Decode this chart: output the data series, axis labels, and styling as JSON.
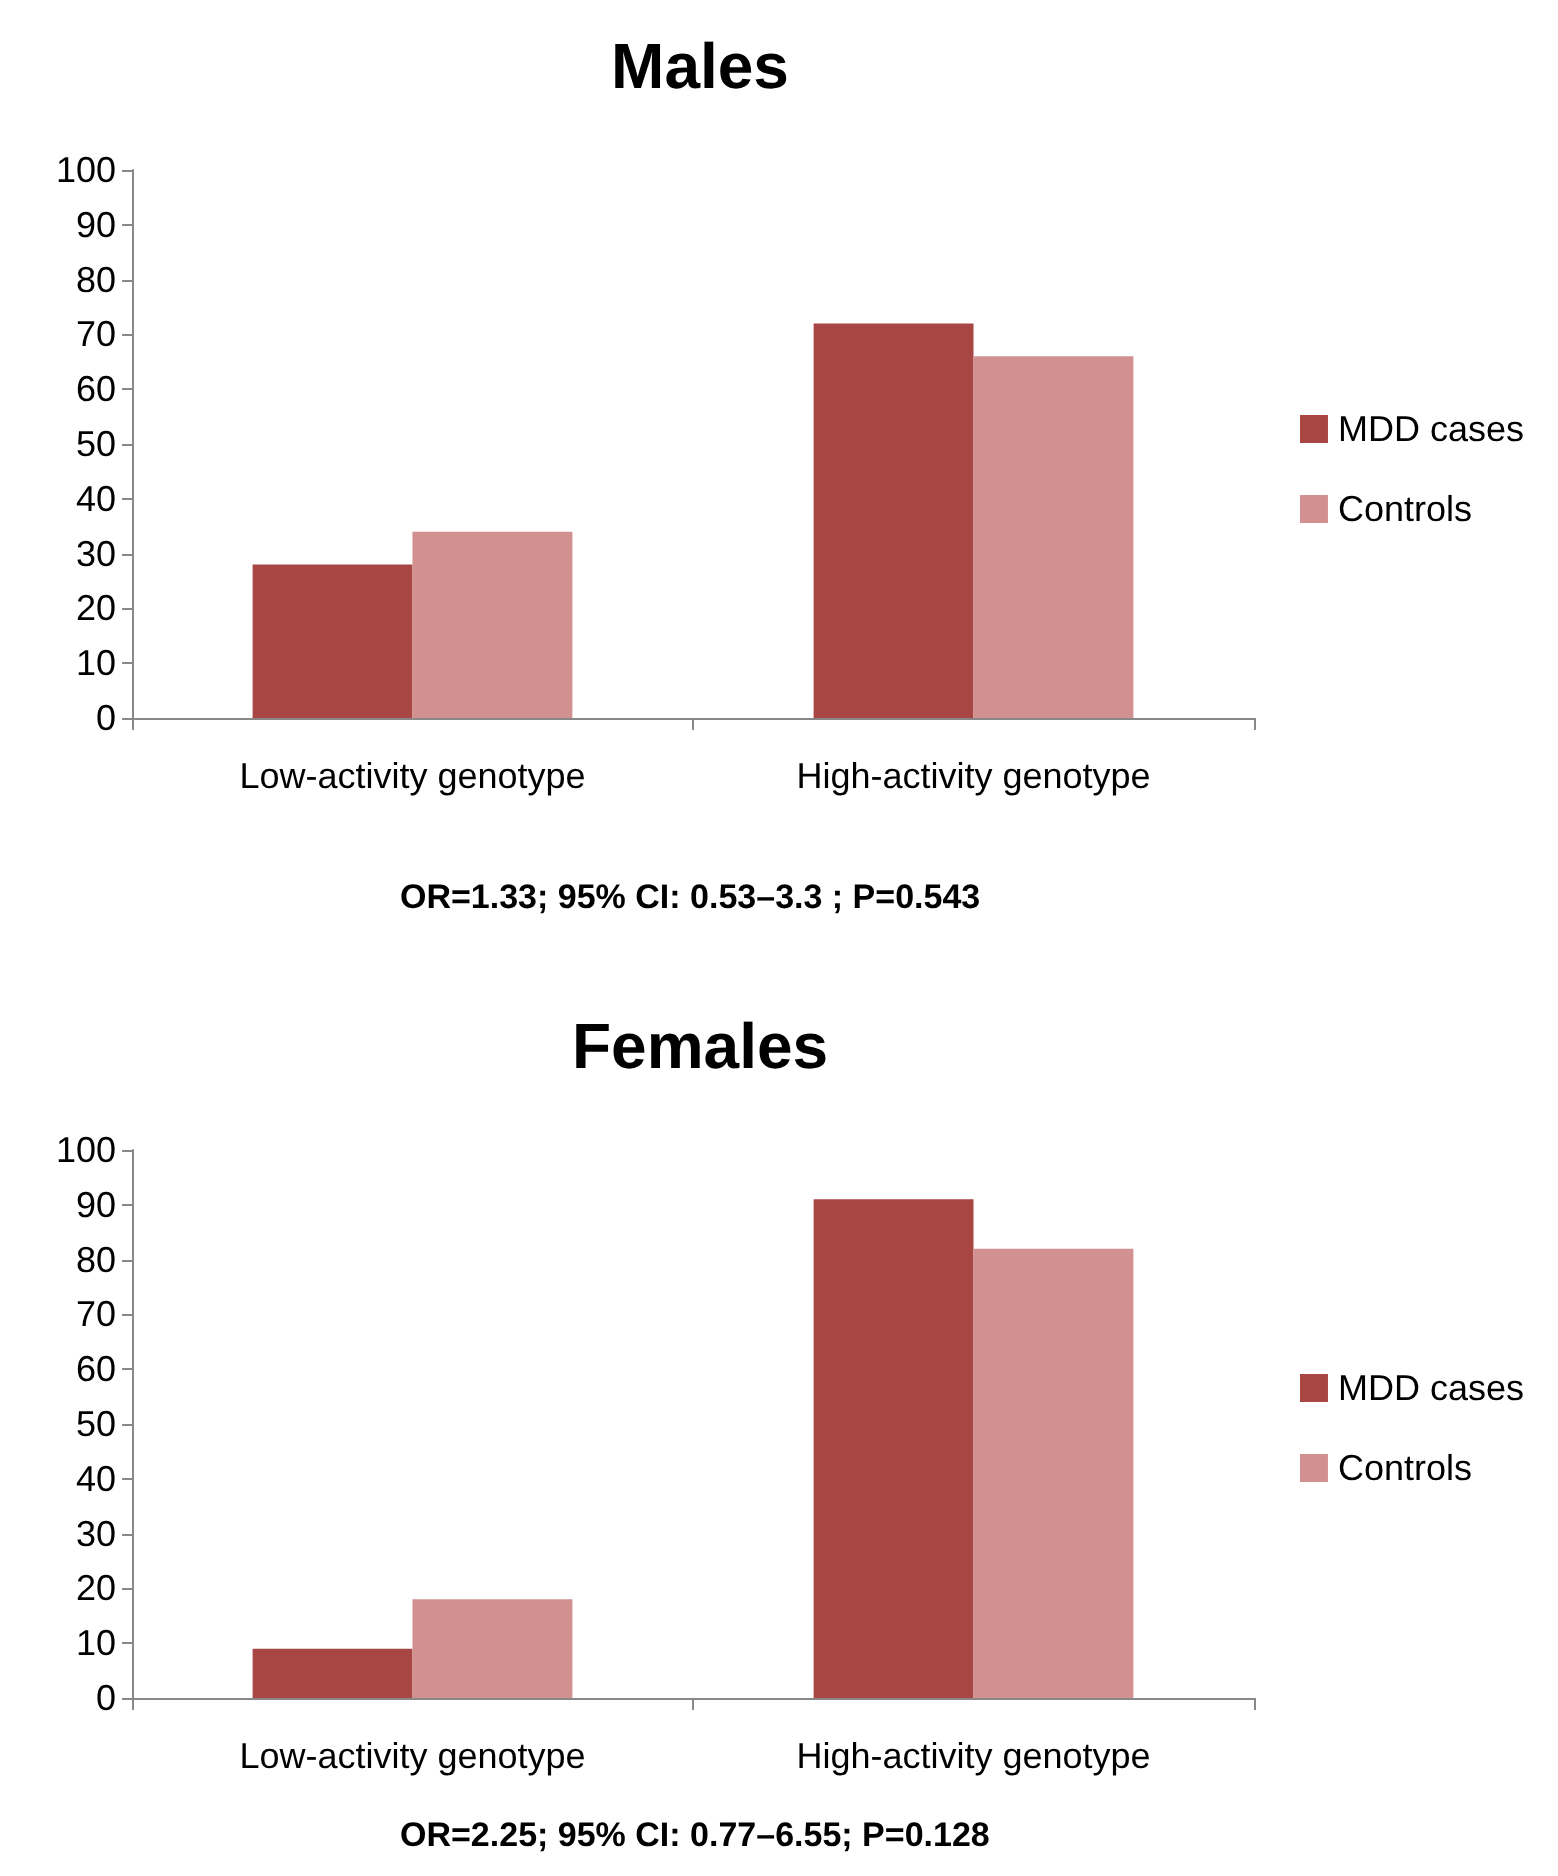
{
  "chart_data": [
    {
      "type": "bar",
      "title": "Males",
      "categories": [
        "Low-activity genotype",
        "High-activity genotype"
      ],
      "series": [
        {
          "name": "MDD cases",
          "color": "#a84644",
          "values": [
            28,
            72
          ]
        },
        {
          "name": "Controls",
          "color": "#d29190",
          "values": [
            34,
            66
          ]
        }
      ],
      "ylim": [
        0,
        100
      ],
      "yticks": [
        0,
        10,
        20,
        30,
        40,
        50,
        60,
        70,
        80,
        90,
        100
      ],
      "grid": false,
      "legend": "right",
      "annotations": [
        "OR=1.33; 95% CI: 0.53–3.3 ; P=0.543"
      ]
    },
    {
      "type": "bar",
      "title": "Females",
      "categories": [
        "Low-activity genotype",
        "High-activity genotype"
      ],
      "series": [
        {
          "name": "MDD cases",
          "color": "#a84644",
          "values": [
            9,
            91
          ]
        },
        {
          "name": "Controls",
          "color": "#d29190",
          "values": [
            18,
            82
          ]
        }
      ],
      "ylim": [
        0,
        100
      ],
      "yticks": [
        0,
        10,
        20,
        30,
        40,
        50,
        60,
        70,
        80,
        90,
        100
      ],
      "grid": false,
      "legend": "right",
      "annotations": [
        "OR=2.25; 95% CI: 0.77–6.55; P=0.128"
      ]
    }
  ]
}
